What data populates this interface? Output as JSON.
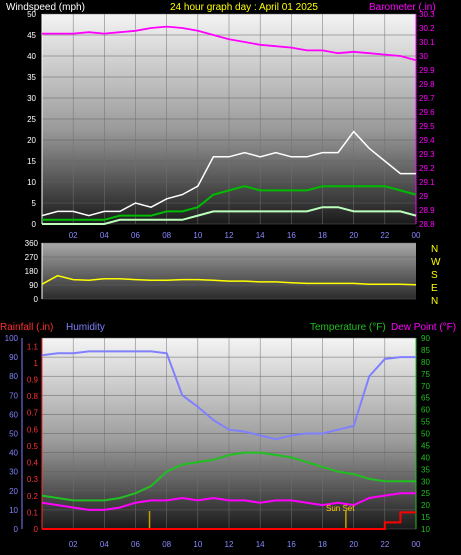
{
  "header": {
    "wind_label": "Windspeed (mph)",
    "title": "24 hour graph day : April 01 2025",
    "baro_label": "Barometer (.in)"
  },
  "lower_header": {
    "rain_label": "Rainfall (.in)",
    "humidity_label": "Humidity",
    "temp_label": "Temperature (°F)",
    "dew_label": "Dew Point (°F)"
  },
  "annotations": {
    "sunset": "Sun Set"
  },
  "colors": {
    "wind_gust": "#ffffff",
    "wind_avg": "#00bb00",
    "wind_light": "#bbffbb",
    "barometer": "#ff00ff",
    "direction": "#ffff00",
    "humidity": "#8080ff",
    "temperature": "#20c020",
    "dewpoint": "#ff00ff",
    "rainfall": "#ff0000",
    "sunrise_sunset": "#c8a000"
  },
  "chart_data": [
    {
      "type": "line",
      "name": "wind-barometer",
      "x_ticks": [
        "02",
        "04",
        "06",
        "08",
        "10",
        "12",
        "14",
        "16",
        "18",
        "20",
        "22",
        "00"
      ],
      "x": [
        0,
        1,
        2,
        3,
        4,
        5,
        6,
        7,
        8,
        9,
        10,
        11,
        12,
        13,
        14,
        15,
        16,
        17,
        18,
        19,
        20,
        21,
        22,
        23,
        24
      ],
      "ylim_left": [
        0,
        50
      ],
      "y_ticks_left": [
        0,
        5,
        10,
        15,
        20,
        25,
        30,
        35,
        40,
        45,
        50
      ],
      "ylim_right": [
        28.8,
        30.3
      ],
      "y_ticks_right": [
        "28.8",
        "28.9",
        "29",
        "29.1",
        "29.2",
        "29.3",
        "29.4",
        "29.5",
        "29.6",
        "29.7",
        "29.8",
        "29.9",
        "30",
        "30.1",
        "30.2",
        "30.3"
      ],
      "series": [
        {
          "name": "Barometer",
          "axis": "right",
          "values": [
            30.16,
            30.16,
            30.16,
            30.17,
            30.16,
            30.17,
            30.18,
            30.2,
            30.21,
            30.2,
            30.18,
            30.15,
            30.12,
            30.1,
            30.08,
            30.07,
            30.06,
            30.04,
            30.04,
            30.02,
            30.03,
            30.02,
            30.01,
            30.0,
            29.97
          ]
        },
        {
          "name": "Windspeed gust",
          "axis": "left",
          "values": [
            2,
            3,
            3,
            2,
            3,
            3,
            5,
            4,
            6,
            7,
            9,
            16,
            16,
            17,
            16,
            17,
            16,
            16,
            17,
            17,
            22,
            18,
            15,
            12,
            12
          ]
        },
        {
          "name": "Windspeed average",
          "axis": "left",
          "values": [
            1,
            1,
            1,
            1,
            1,
            2,
            2,
            2,
            3,
            3,
            4,
            7,
            8,
            9,
            8,
            8,
            8,
            8,
            9,
            9,
            9,
            9,
            9,
            8,
            7
          ]
        },
        {
          "name": "Windspeed low",
          "axis": "left",
          "values": [
            0,
            0,
            0,
            0,
            0,
            1,
            1,
            1,
            1,
            1,
            2,
            3,
            3,
            3,
            3,
            3,
            3,
            3,
            4,
            4,
            3,
            3,
            3,
            3,
            2
          ]
        }
      ]
    },
    {
      "type": "line",
      "name": "wind-direction",
      "x": [
        0,
        1,
        2,
        3,
        4,
        5,
        6,
        7,
        8,
        9,
        10,
        11,
        12,
        13,
        14,
        15,
        16,
        17,
        18,
        19,
        20,
        21,
        22,
        23,
        24
      ],
      "ylim": [
        0,
        360
      ],
      "y_ticks": [
        0,
        90,
        180,
        270,
        360
      ],
      "compass": [
        "N",
        "W",
        "S",
        "E",
        "N"
      ],
      "series": [
        {
          "name": "Wind direction",
          "values": [
            95,
            150,
            125,
            120,
            130,
            130,
            125,
            120,
            120,
            125,
            125,
            120,
            115,
            115,
            110,
            110,
            105,
            100,
            100,
            100,
            100,
            95,
            95,
            95,
            92
          ]
        }
      ]
    },
    {
      "type": "line",
      "name": "temperature-humidity-rain",
      "x": [
        0,
        1,
        2,
        3,
        4,
        5,
        6,
        7,
        8,
        9,
        10,
        11,
        12,
        13,
        14,
        15,
        16,
        17,
        18,
        19,
        20,
        21,
        22,
        23,
        24
      ],
      "ylim_humidity": [
        0,
        100
      ],
      "y_ticks_humidity": [
        0,
        10,
        20,
        30,
        40,
        50,
        60,
        70,
        80,
        90,
        100
      ],
      "ylim_rain": [
        0,
        1.15
      ],
      "y_ticks_rain": [
        "0",
        "0.1",
        "0.2",
        "0.3",
        "0.4",
        "0.5",
        "0.6",
        "0.7",
        "0.8",
        "0.9",
        "1",
        "1.1"
      ],
      "ylim_temp": [
        10,
        90
      ],
      "y_ticks_temp": [
        10,
        15,
        20,
        25,
        30,
        35,
        40,
        45,
        50,
        55,
        60,
        65,
        70,
        75,
        80,
        85,
        90
      ],
      "sunrise_hour": 6.9,
      "sunset_hour": 19.5,
      "series": [
        {
          "name": "Humidity",
          "axis": "humidity",
          "values": [
            91,
            92,
            92,
            93,
            93,
            93,
            93,
            93,
            92,
            70,
            64,
            57,
            52,
            51,
            49,
            47,
            49,
            50,
            50,
            52,
            54,
            80,
            89,
            90,
            90
          ]
        },
        {
          "name": "Temperature",
          "axis": "temp",
          "values": [
            24,
            23,
            22,
            22,
            22,
            23,
            25,
            28,
            34,
            37,
            38,
            39,
            41,
            42,
            42,
            41,
            40,
            38,
            36,
            34,
            33,
            31,
            30,
            30,
            30
          ]
        },
        {
          "name": "Dew Point",
          "axis": "temp",
          "values": [
            21,
            20,
            19,
            18,
            18,
            19,
            21,
            22,
            22,
            23,
            22,
            23,
            22,
            22,
            21,
            22,
            22,
            21,
            20,
            21,
            20,
            23,
            24,
            25,
            25
          ]
        },
        {
          "name": "Rainfall",
          "axis": "rain",
          "values": [
            0,
            0,
            0,
            0,
            0,
            0,
            0,
            0,
            0,
            0,
            0,
            0,
            0,
            0,
            0,
            0,
            0,
            0,
            0,
            0,
            0,
            0,
            0.04,
            0.1,
            0.1
          ]
        }
      ]
    }
  ]
}
